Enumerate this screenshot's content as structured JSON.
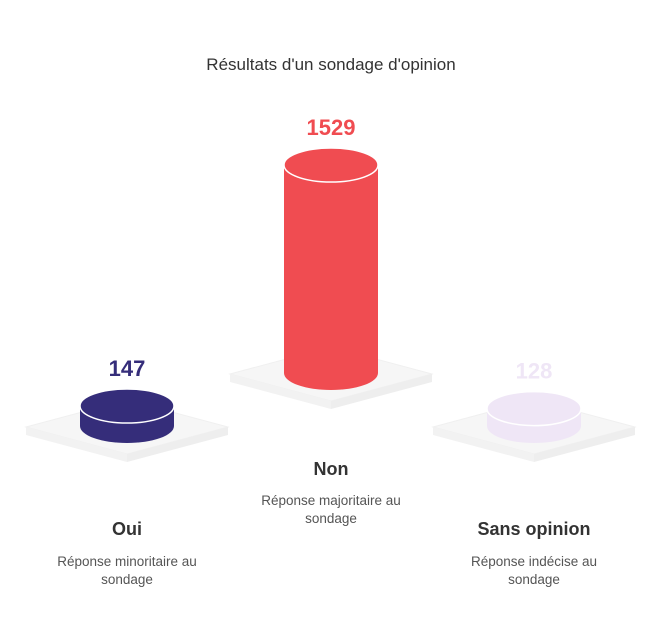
{
  "chart_data": {
    "type": "bar",
    "title": "Résultats d'un sondage d'opinion",
    "categories": [
      "Oui",
      "Non",
      "Sans opinion"
    ],
    "values": [
      147,
      1529,
      128
    ],
    "descriptions": [
      [
        "Réponse minoritaire au",
        "sondage"
      ],
      [
        "Réponse majoritaire au",
        "sondage"
      ],
      [
        "Réponse indécise au",
        "sondage"
      ]
    ],
    "colors": [
      "#352D7A",
      "#F04C51",
      "#EFE6F6"
    ],
    "label_colors": [
      "#352D7A",
      "#F04C51",
      "#EFE6F6"
    ]
  }
}
